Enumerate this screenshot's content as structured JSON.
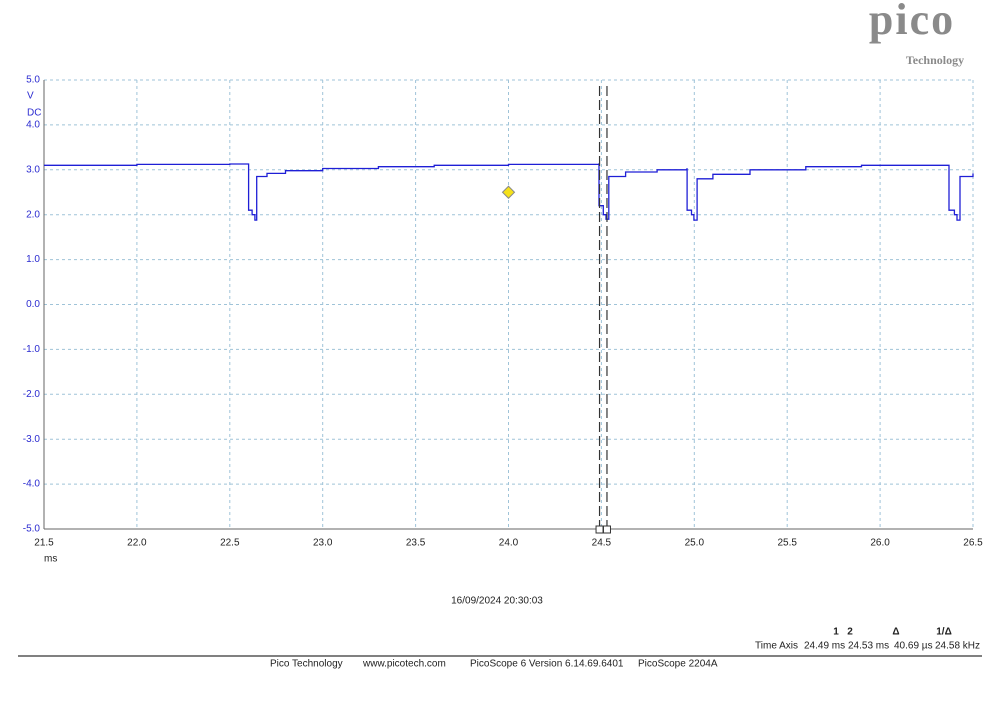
{
  "chart_data": {
    "type": "line",
    "brand": "pico",
    "brand_sub": "Technology",
    "y_unit": "V",
    "coupling": "DC",
    "x_unit": "ms",
    "x": [
      21.5,
      22.0,
      22.5,
      22.6,
      22.601,
      22.62,
      22.635,
      22.645,
      22.7,
      22.8,
      23.0,
      23.3,
      23.6,
      24.0,
      24.486,
      24.487,
      24.51,
      24.525,
      24.54,
      24.63,
      24.8,
      24.96,
      24.961,
      24.985,
      24.998,
      25.015,
      25.1,
      25.3,
      25.6,
      25.9,
      26.37,
      26.371,
      26.4,
      26.414,
      26.43,
      26.5
    ],
    "series": [
      {
        "color": "#1f1fd6",
        "values": [
          3.1,
          3.12,
          3.13,
          3.13,
          2.1,
          2.0,
          1.88,
          2.85,
          2.92,
          2.98,
          3.03,
          3.07,
          3.1,
          3.12,
          3.13,
          2.2,
          2.0,
          1.9,
          2.85,
          2.95,
          3.0,
          3.02,
          2.1,
          2.0,
          1.88,
          2.8,
          2.9,
          3.0,
          3.07,
          3.1,
          3.1,
          2.1,
          2.0,
          1.88,
          2.85,
          2.92
        ]
      }
    ],
    "xlim": [
      21.5,
      26.5
    ],
    "xticks": [
      21.5,
      {
        "value": 22,
        "label": "22.0"
      },
      22.5,
      {
        "value": 23,
        "label": "23.0"
      },
      23.5,
      {
        "value": 24,
        "label": "24.0"
      },
      24.5,
      {
        "value": 25,
        "label": "25.0"
      },
      25.5,
      {
        "value": 26,
        "label": "26.0"
      },
      26.5
    ],
    "ylim": [
      -5,
      5
    ],
    "yticks": [
      {
        "value": -5,
        "label": "-5.0"
      },
      {
        "value": -4,
        "label": "-4.0"
      },
      {
        "value": -3,
        "label": "-3.0"
      },
      {
        "value": -2,
        "label": "-2.0"
      },
      {
        "value": -1,
        "label": "-1.0"
      },
      {
        "value": 0,
        "label": "0.0"
      },
      {
        "value": 1,
        "label": "1.0"
      },
      {
        "value": 2,
        "label": "2.0"
      },
      {
        "value": 3,
        "label": "3.0"
      },
      {
        "value": 4,
        "label": "4.0"
      },
      {
        "value": 5,
        "label": "5.0"
      }
    ],
    "grid": true,
    "trigger": {
      "x": 24.0,
      "y": 2.5,
      "color": "#f5e11a"
    },
    "cursors": [
      24.49,
      24.53
    ],
    "timestamp": "16/09/2024 20:30:03",
    "measurements": {
      "header": [
        "1",
        "2",
        "Δ",
        "1/Δ"
      ],
      "row_label": "Time Axis",
      "row": [
        "24.49 ms",
        "24.53 ms",
        "40.69 µs",
        "24.58 kHz"
      ]
    },
    "footer": [
      "Pico Technology",
      "www.picotech.com",
      "PicoScope 6 Version 6.14.69.6401",
      "PicoScope 2204A"
    ]
  }
}
